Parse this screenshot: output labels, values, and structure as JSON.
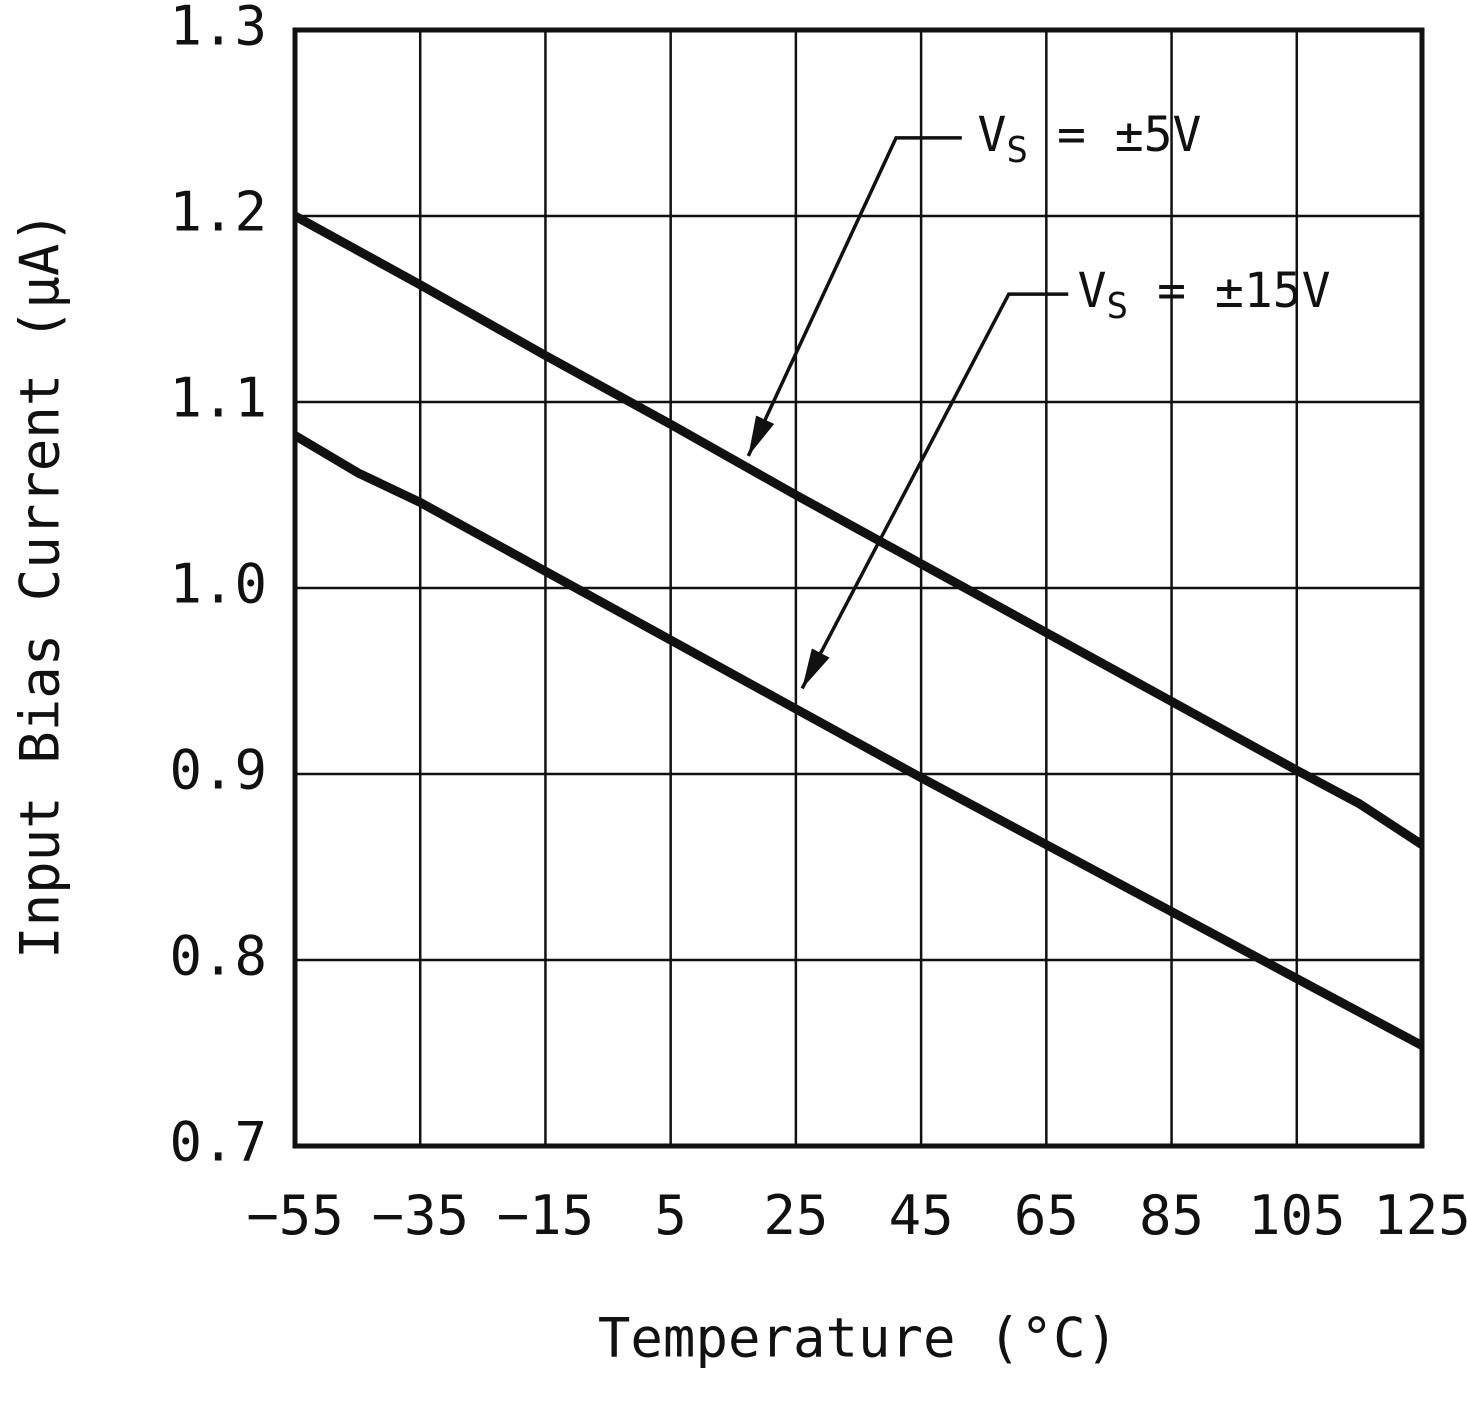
{
  "chart_data": {
    "type": "line",
    "title": "",
    "xlabel": "Temperature (°C)",
    "ylabel": "Input Bias Current (μA)",
    "xlim": [
      -55,
      125
    ],
    "ylim": [
      0.7,
      1.3
    ],
    "grid": true,
    "legend_position": "inline-annotations",
    "line_color": "#111111",
    "grid_color": "#111111",
    "xticks": [
      {
        "v": -55,
        "label": "−55"
      },
      {
        "v": -35,
        "label": "−35"
      },
      {
        "v": -15,
        "label": "−15"
      },
      {
        "v": 5,
        "label": "5"
      },
      {
        "v": 25,
        "label": "25"
      },
      {
        "v": 45,
        "label": "45"
      },
      {
        "v": 65,
        "label": "65"
      },
      {
        "v": 85,
        "label": "85"
      },
      {
        "v": 105,
        "label": "105"
      },
      {
        "v": 125,
        "label": "125"
      }
    ],
    "yticks": [
      {
        "v": 0.7,
        "label": "0.7"
      },
      {
        "v": 0.8,
        "label": "0.8"
      },
      {
        "v": 0.9,
        "label": "0.9"
      },
      {
        "v": 1.0,
        "label": "1.0"
      },
      {
        "v": 1.1,
        "label": "1.1"
      },
      {
        "v": 1.2,
        "label": "1.2"
      },
      {
        "v": 1.3,
        "label": "1.3"
      }
    ],
    "series": [
      {
        "name": "VS = ±5V",
        "x": [
          -55,
          -35,
          -15,
          5,
          25,
          45,
          65,
          85,
          105,
          115,
          125
        ],
        "y": [
          1.2,
          1.163,
          1.125,
          1.088,
          1.05,
          1.013,
          0.976,
          0.939,
          0.902,
          0.884,
          0.862
        ]
      },
      {
        "name": "VS = ±15V",
        "x": [
          -55,
          -45,
          -35,
          -15,
          5,
          25,
          45,
          65,
          85,
          105,
          125
        ],
        "y": [
          1.082,
          1.062,
          1.046,
          1.009,
          0.972,
          0.935,
          0.898,
          0.862,
          0.826,
          0.79,
          0.754
        ]
      }
    ],
    "annotations": [
      {
        "pre": "V",
        "sub": "S",
        "post": " = ±5V",
        "text_x": 54,
        "text_y": 1.242,
        "leader": [
          [
            51.5,
            1.242
          ],
          [
            41,
            1.242
          ],
          [
            17.4,
            1.071
          ]
        ]
      },
      {
        "pre": "V",
        "sub": "S",
        "post": " = ±15V",
        "text_x": 70,
        "text_y": 1.158,
        "leader": [
          [
            68.5,
            1.158
          ],
          [
            59,
            1.158
          ],
          [
            26,
            0.946
          ]
        ]
      }
    ]
  }
}
